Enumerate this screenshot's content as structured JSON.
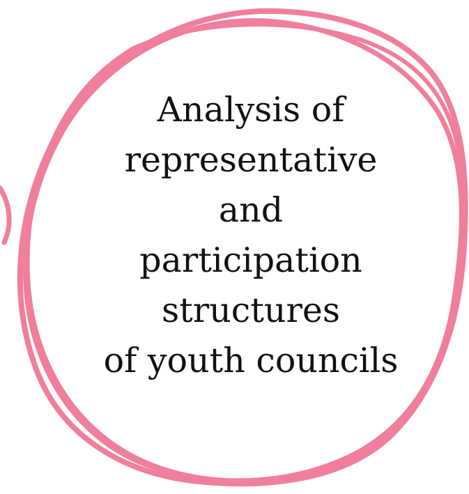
{
  "title_lines": [
    "Analysis of",
    "representative",
    "and",
    "participation",
    "structures",
    "of youth councils"
  ],
  "colors": {
    "background": "#ffffff",
    "scribble": "#f07f9c",
    "text": "#111111"
  }
}
